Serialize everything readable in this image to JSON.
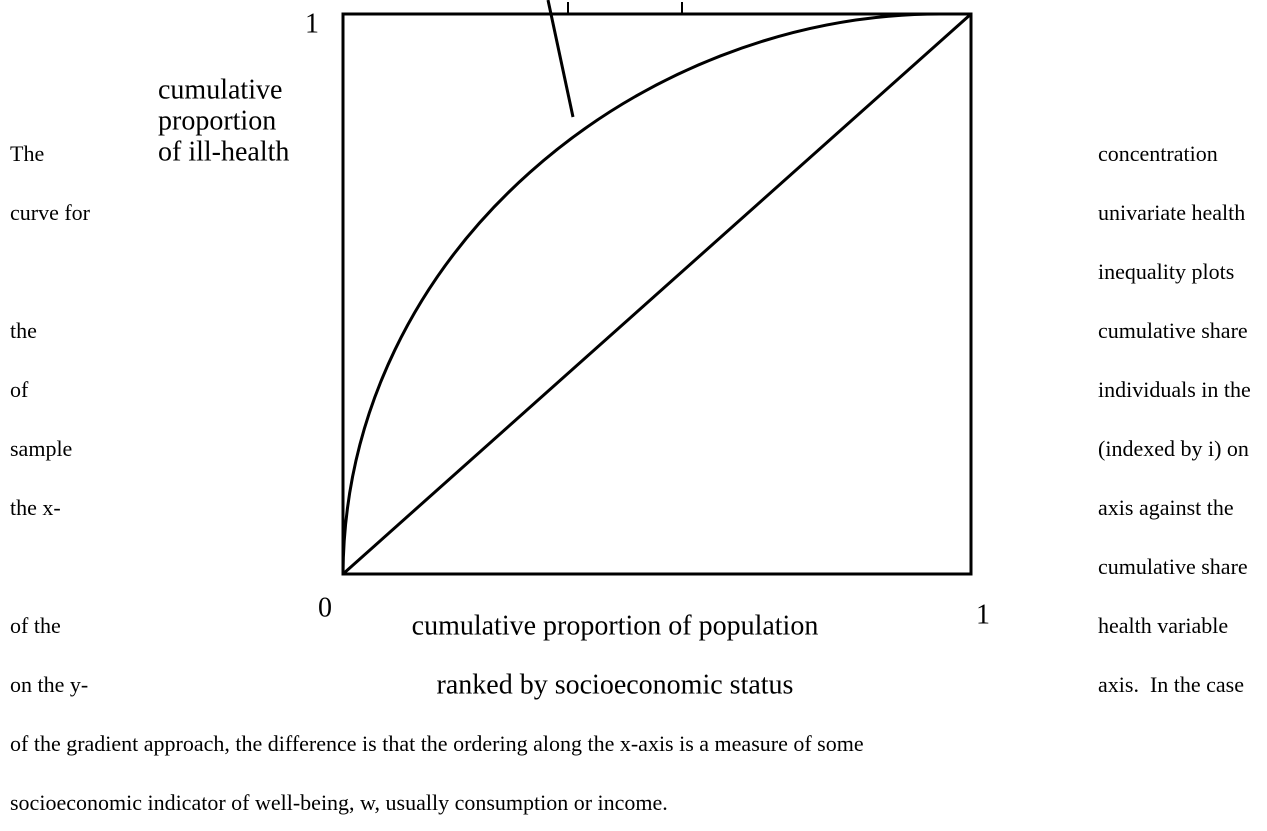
{
  "figure": {
    "y_top_label": "1",
    "y_axis_label": [
      "cumulative",
      "proportion",
      "of ill-health"
    ],
    "origin_label": "0",
    "x_end_label": "1",
    "x_axis_label": [
      "cumulative proportion of population",
      "ranked by socioeconomic status"
    ]
  },
  "left_column": [
    "The",
    "curve for",
    "the",
    "of",
    "sample",
    "the x-",
    "of the",
    "on the y-"
  ],
  "right_column": [
    "concentration",
    "univariate health",
    "inequality plots",
    "cumulative share",
    "individuals in the",
    "(indexed by i) on",
    "axis against the",
    "cumulative share",
    "health variable",
    "axis.  In the case"
  ],
  "paragraph": [
    "of the gradient approach, the difference is that the ordering along the x-axis is a measure of some",
    "socioeconomic indicator of well-being, w, usually consumption or income."
  ]
}
